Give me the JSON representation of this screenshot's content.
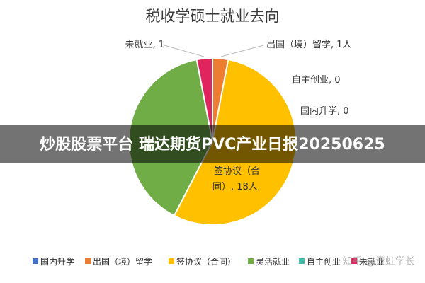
{
  "chart_data": {
    "type": "pie",
    "title": "税收学硕士就业去向",
    "slices": [
      {
        "name": "国内升学",
        "value": 0,
        "color": "#4472C4",
        "label": "国内升学, 0"
      },
      {
        "name": "出国（境）留学",
        "value": 1,
        "color": "#ED7D31",
        "label": "出国（境）留学, 1人"
      },
      {
        "name": "签协议（合同）",
        "value": 18,
        "color": "#FFC000",
        "label_line1": "签协议（合",
        "label_line2": "同）, 18人"
      },
      {
        "name": "灵活就业",
        "value": 13,
        "color": "#70AD47",
        "label": ""
      },
      {
        "name": "自主创业",
        "value": 0,
        "color": "#44BBAA",
        "label": "自主创业, 0"
      },
      {
        "name": "未就业",
        "value": 1,
        "color": "#E0245E",
        "label": "未就业, 1"
      }
    ],
    "legend_position": "bottom"
  },
  "banner": {
    "text": "炒股股票平台 瑞达期货PVC产业日报20250625"
  },
  "watermark": {
    "text": "知乎 @青蛙学长"
  }
}
